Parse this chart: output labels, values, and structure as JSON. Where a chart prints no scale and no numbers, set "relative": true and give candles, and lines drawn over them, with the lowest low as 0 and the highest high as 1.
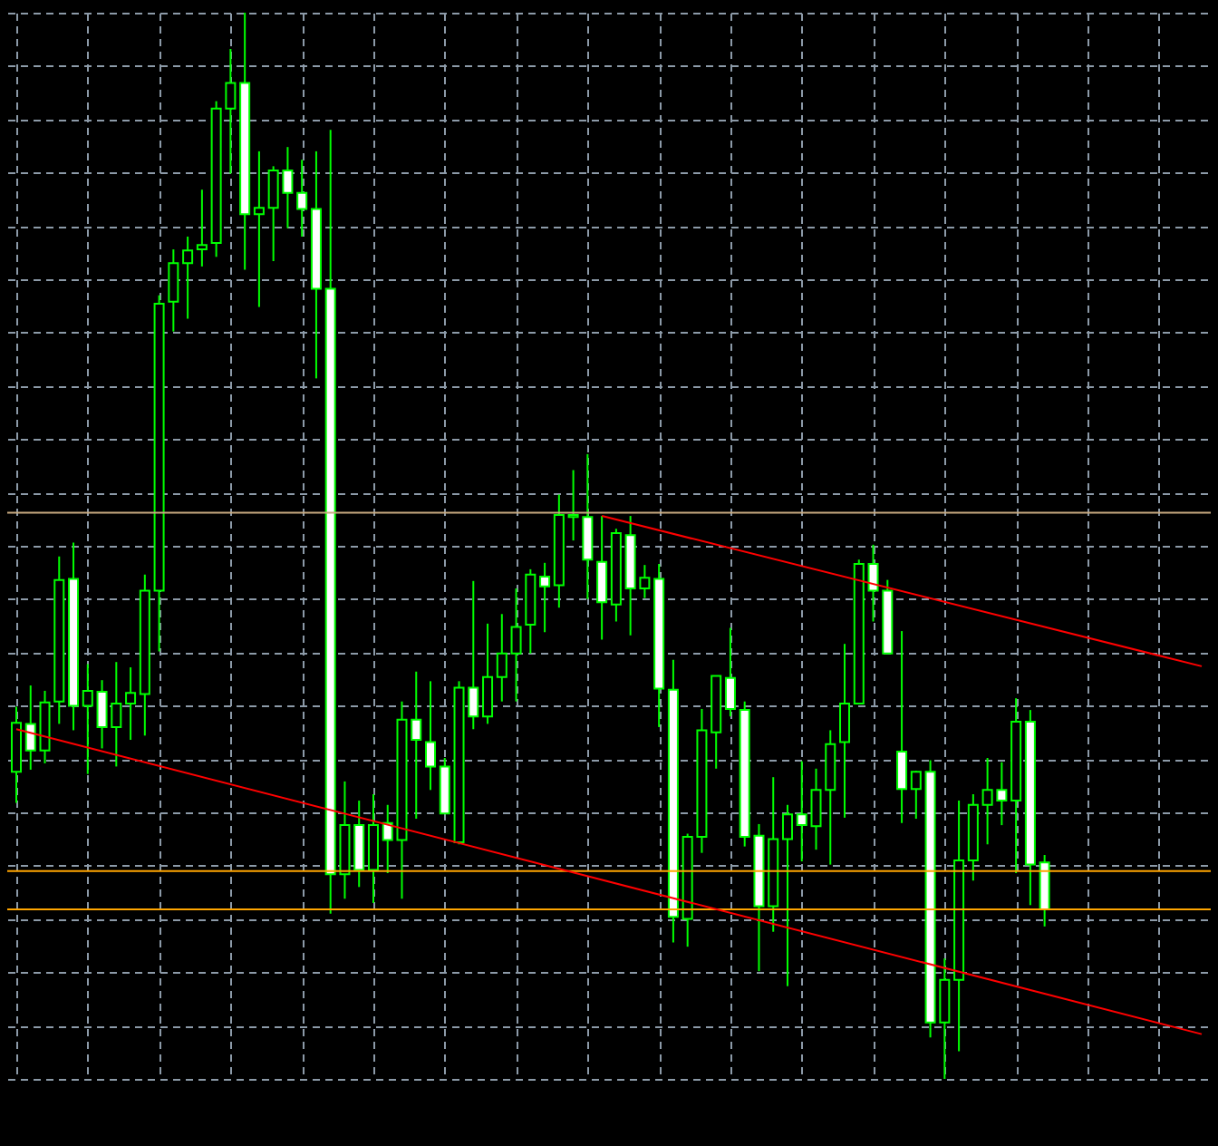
{
  "chart_data": {
    "type": "candlestick",
    "relative": true,
    "grid": true,
    "color": "#00ff00",
    "categories": [
      null,
      null,
      null,
      null,
      null,
      null,
      null,
      null,
      null,
      null,
      null,
      null,
      null,
      null,
      null,
      null,
      null,
      null,
      null,
      null,
      null,
      null,
      null,
      null,
      null,
      null,
      null,
      null,
      null,
      null,
      null,
      null,
      null,
      null,
      null,
      null,
      null,
      null,
      null,
      null,
      null,
      null,
      null,
      null,
      null,
      null,
      null,
      null,
      null,
      null,
      null,
      null,
      null,
      null,
      null,
      null,
      null,
      null,
      null,
      null,
      null,
      null,
      null,
      null,
      null,
      null,
      null,
      null,
      null,
      null,
      null,
      null,
      null,
      null,
      null,
      null,
      null,
      null,
      null,
      null,
      null,
      null,
      null,
      null
    ],
    "ohlc": [
      [
        0.288,
        0.349,
        0.259,
        0.334
      ],
      [
        0.333,
        0.369,
        0.29,
        0.308
      ],
      [
        0.308,
        0.364,
        0.296,
        0.353
      ],
      [
        0.354,
        0.49,
        0.333,
        0.468
      ],
      [
        0.469,
        0.503,
        0.327,
        0.35
      ],
      [
        0.35,
        0.389,
        0.286,
        0.364
      ],
      [
        0.363,
        0.374,
        0.31,
        0.33
      ],
      [
        0.33,
        0.391,
        0.293,
        0.352
      ],
      [
        0.352,
        0.386,
        0.318,
        0.362
      ],
      [
        0.361,
        0.473,
        0.322,
        0.458
      ],
      [
        0.458,
        0.735,
        0.401,
        0.727
      ],
      [
        0.729,
        0.778,
        0.701,
        0.765
      ],
      [
        0.765,
        0.79,
        0.713,
        0.777
      ],
      [
        0.778,
        0.834,
        0.762,
        0.782
      ],
      [
        0.784,
        0.917,
        0.771,
        0.91
      ],
      [
        0.91,
        0.966,
        0.849,
        0.934
      ],
      [
        0.934,
        1.0,
        0.759,
        0.811
      ],
      [
        0.811,
        0.87,
        0.724,
        0.817
      ],
      [
        0.817,
        0.856,
        0.767,
        0.852
      ],
      [
        0.852,
        0.874,
        0.798,
        0.831
      ],
      [
        0.831,
        0.862,
        0.79,
        0.816
      ],
      [
        0.816,
        0.87,
        0.657,
        0.741
      ],
      [
        0.741,
        0.89,
        0.155,
        0.192
      ],
      [
        0.192,
        0.279,
        0.169,
        0.238
      ],
      [
        0.238,
        0.261,
        0.18,
        0.196
      ],
      [
        0.196,
        0.267,
        0.165,
        0.238
      ],
      [
        0.24,
        0.257,
        0.193,
        0.224
      ],
      [
        0.224,
        0.354,
        0.169,
        0.337
      ],
      [
        0.337,
        0.382,
        0.244,
        0.318
      ],
      [
        0.316,
        0.373,
        0.271,
        0.293
      ],
      [
        0.293,
        0.301,
        0.249,
        0.249
      ],
      [
        0.222,
        0.373,
        0.22,
        0.367
      ],
      [
        0.367,
        0.467,
        0.328,
        0.34
      ],
      [
        0.34,
        0.427,
        0.333,
        0.377
      ],
      [
        0.377,
        0.436,
        0.354,
        0.399
      ],
      [
        0.399,
        0.46,
        0.354,
        0.424
      ],
      [
        0.426,
        0.478,
        0.399,
        0.473
      ],
      [
        0.471,
        0.484,
        0.419,
        0.462
      ],
      [
        0.463,
        0.548,
        0.442,
        0.529
      ],
      [
        0.527,
        0.571,
        0.505,
        0.529
      ],
      [
        0.527,
        0.586,
        0.45,
        0.487
      ],
      [
        0.485,
        0.528,
        0.412,
        0.447
      ],
      [
        0.445,
        0.516,
        0.429,
        0.512
      ],
      [
        0.51,
        0.528,
        0.416,
        0.46
      ],
      [
        0.46,
        0.482,
        0.451,
        0.47
      ],
      [
        0.469,
        0.483,
        0.33,
        0.366
      ],
      [
        0.365,
        0.393,
        0.128,
        0.152
      ],
      [
        0.15,
        0.23,
        0.124,
        0.227
      ],
      [
        0.227,
        0.347,
        0.212,
        0.327
      ],
      [
        0.325,
        0.378,
        0.291,
        0.378
      ],
      [
        0.376,
        0.423,
        0.34,
        0.347
      ],
      [
        0.346,
        0.354,
        0.218,
        0.227
      ],
      [
        0.228,
        0.239,
        0.101,
        0.162
      ],
      [
        0.162,
        0.283,
        0.138,
        0.225
      ],
      [
        0.225,
        0.257,
        0.087,
        0.248
      ],
      [
        0.248,
        0.298,
        0.204,
        0.238
      ],
      [
        0.237,
        0.291,
        0.215,
        0.271
      ],
      [
        0.271,
        0.327,
        0.201,
        0.314
      ],
      [
        0.316,
        0.408,
        0.245,
        0.352
      ],
      [
        0.352,
        0.487,
        0.352,
        0.483
      ],
      [
        0.483,
        0.501,
        0.429,
        0.458
      ],
      [
        0.458,
        0.468,
        0.399,
        0.399
      ],
      [
        0.307,
        0.42,
        0.24,
        0.272
      ],
      [
        0.272,
        0.289,
        0.244,
        0.288
      ],
      [
        0.288,
        0.299,
        0.039,
        0.053
      ],
      [
        0.053,
        0.113,
        0.0,
        0.093
      ],
      [
        0.093,
        0.261,
        0.026,
        0.205
      ],
      [
        0.205,
        0.267,
        0.186,
        0.257
      ],
      [
        0.257,
        0.301,
        0.22,
        0.271
      ],
      [
        0.271,
        0.297,
        0.238,
        0.261
      ],
      [
        0.261,
        0.357,
        0.193,
        0.335
      ],
      [
        0.335,
        0.346,
        0.163,
        0.201
      ],
      [
        0.203,
        0.21,
        0.143,
        0.159
      ],
      null,
      null,
      null,
      null,
      null,
      null,
      null,
      null,
      null,
      null,
      null
    ],
    "colors": [
      "#000000",
      "#ffffff",
      "#000000",
      "#000000",
      "#ffffff",
      "#000000",
      "#ffffff",
      "#000000",
      "#000000",
      "#000000",
      "#000000",
      "#000000",
      "#000000",
      "#000000",
      "#000000",
      "#000000",
      "#ffffff",
      "#000000",
      "#000000",
      "#ffffff",
      "#ffffff",
      "#ffffff",
      "#ffffff",
      "#000000",
      "#ffffff",
      "#000000",
      "#ffffff",
      "#000000",
      "#ffffff",
      "#ffffff",
      "#ffffff",
      "#000000",
      "#ffffff",
      "#000000",
      "#000000",
      "#000000",
      "#000000",
      "#ffffff",
      "#000000",
      "#000000",
      "#ffffff",
      "#ffffff",
      "#000000",
      "#ffffff",
      "#000000",
      "#ffffff",
      "#ffffff",
      "#000000",
      "#000000",
      "#000000",
      "#ffffff",
      "#ffffff",
      "#ffffff",
      "#000000",
      "#000000",
      "#ffffff",
      "#000000",
      "#000000",
      "#000000",
      "#000000",
      "#ffffff",
      "#ffffff",
      "#ffffff",
      "#000000",
      "#ffffff",
      "#000000",
      "#000000",
      "#000000",
      "#000000",
      "#ffffff",
      "#000000",
      "#ffffff",
      "#ffffff",
      null,
      null,
      null,
      null,
      null,
      null,
      null,
      null,
      null,
      null,
      null
    ],
    "series": [
      {
        "type": "line",
        "color": "#ff0000",
        "values": [
          0.328,
          null,
          null,
          null,
          null,
          null,
          null,
          null,
          null,
          null,
          null,
          null,
          null,
          null,
          null,
          null,
          null,
          null,
          null,
          null,
          null,
          null,
          null,
          null,
          null,
          null,
          null,
          null,
          null,
          null,
          null,
          null,
          null,
          null,
          null,
          null,
          null,
          null,
          null,
          null,
          null,
          null,
          null,
          null,
          null,
          null,
          null,
          null,
          null,
          null,
          null,
          null,
          null,
          null,
          null,
          null,
          null,
          null,
          null,
          null,
          null,
          null,
          null,
          null,
          null,
          null,
          null,
          null,
          null,
          null,
          null,
          null,
          null,
          null,
          null,
          null,
          null,
          null,
          null,
          null,
          null,
          null,
          null,
          0.042
        ]
      },
      {
        "type": "line",
        "color": "#ff0000",
        "values": [
          null,
          null,
          null,
          null,
          null,
          null,
          null,
          null,
          null,
          null,
          null,
          null,
          null,
          null,
          null,
          null,
          null,
          null,
          null,
          null,
          null,
          null,
          null,
          null,
          null,
          null,
          null,
          null,
          null,
          null,
          null,
          null,
          null,
          null,
          null,
          null,
          null,
          null,
          null,
          null,
          null,
          0.528,
          null,
          null,
          null,
          null,
          null,
          null,
          null,
          null,
          null,
          null,
          null,
          null,
          null,
          null,
          null,
          null,
          null,
          null,
          null,
          null,
          null,
          null,
          null,
          null,
          null,
          null,
          null,
          null,
          null,
          null,
          null,
          null,
          null,
          null,
          null,
          null,
          null,
          null,
          null,
          null,
          null,
          0.387
        ]
      }
    ],
    "ref_lines": [
      {
        "axis": "y",
        "value": 0.531,
        "color": "#c8aa80"
      },
      {
        "axis": "y",
        "value": 0.195,
        "color": "#ffa500"
      },
      {
        "axis": "y",
        "value": 0.159,
        "color": "#ffa500"
      }
    ]
  }
}
